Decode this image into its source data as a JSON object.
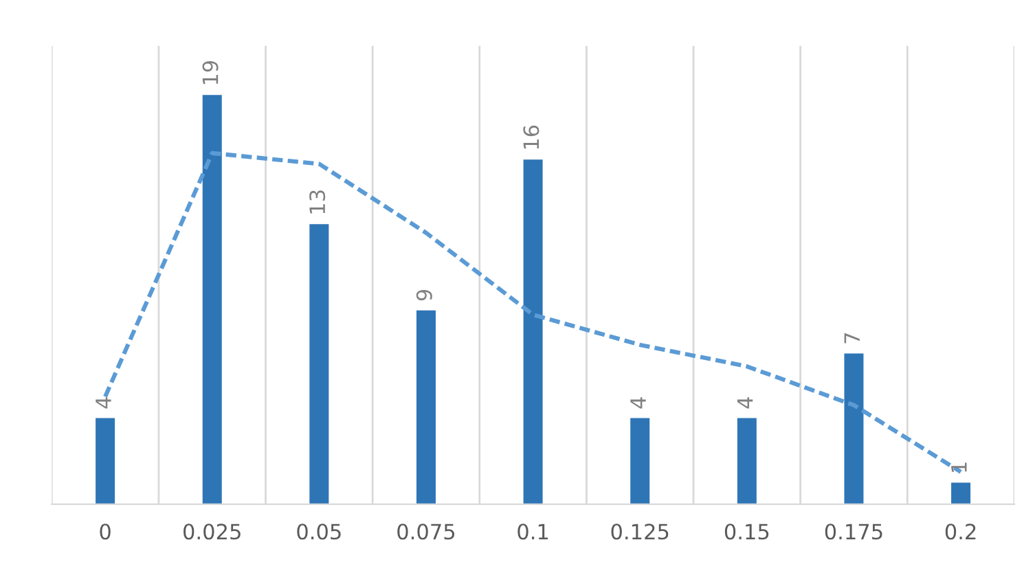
{
  "chart_data": {
    "type": "bar",
    "categories": [
      "0",
      "0.025",
      "0.05",
      "0.075",
      "0.1",
      "0.125",
      "0.15",
      "0.175",
      "0.2"
    ],
    "grid": "x",
    "series": [
      {
        "color": "#2e75b6",
        "values": [
          4,
          19,
          13,
          9,
          16,
          4,
          4,
          7,
          1
        ],
        "value_labels": [
          "4",
          "19",
          "13",
          "9",
          "16",
          "4",
          "4",
          "7",
          "1"
        ]
      },
      {
        "type": "line",
        "color": "#5b9bd5",
        "line_style": "dashed",
        "values": [
          5.0,
          16.3,
          15.8,
          12.6,
          8.8,
          7.4,
          6.4,
          4.6,
          1.5
        ]
      }
    ]
  }
}
